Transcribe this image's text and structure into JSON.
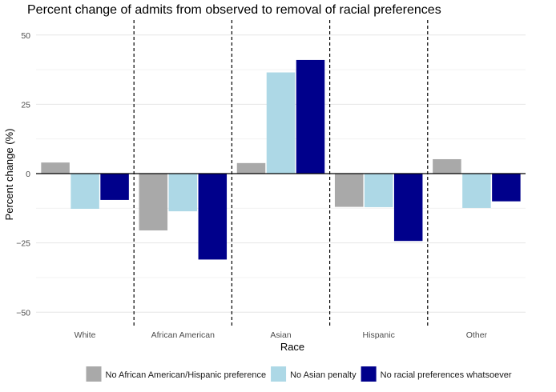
{
  "chart_data": {
    "type": "bar",
    "title": "Percent change of admits from observed to removal of racial preferences",
    "xlabel": "Race",
    "ylabel": "Percent change (%)",
    "ylim": [
      -55,
      50
    ],
    "yticks": [
      -50,
      -25,
      0,
      25,
      50
    ],
    "yticklabels": [
      "−50",
      "−25",
      "0",
      "25",
      "50"
    ],
    "grid": true,
    "legend_position": "bottom",
    "categories": [
      "White",
      "African American",
      "Asian",
      "Hispanic",
      "Other"
    ],
    "series": [
      {
        "name": "No African American/Hispanic preference",
        "color": "#a9a9a9",
        "values": [
          4.0,
          -20.5,
          3.8,
          -12.0,
          5.2
        ]
      },
      {
        "name": "No Asian penalty",
        "color": "#add8e6",
        "values": [
          -12.7,
          -13.6,
          36.5,
          -12.1,
          -12.4
        ]
      },
      {
        "name": "No racial preferences whatsoever",
        "color": "#00008b",
        "values": [
          -9.5,
          -31.0,
          41.0,
          -24.3,
          -10.0
        ]
      }
    ]
  }
}
